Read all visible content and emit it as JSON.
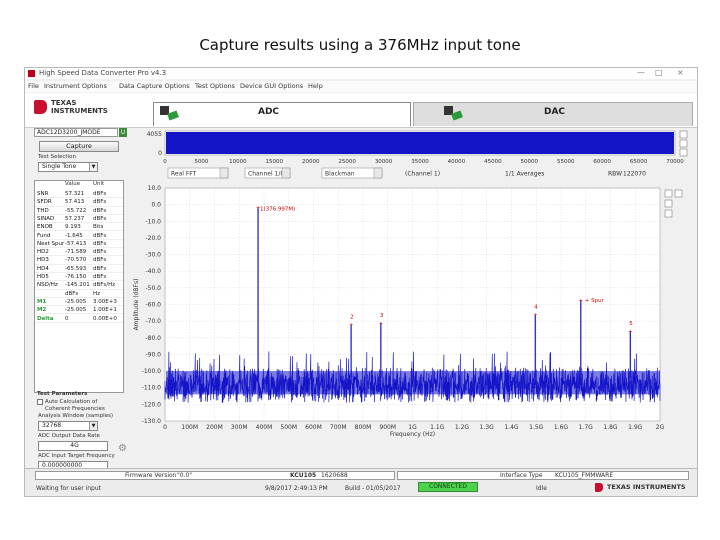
{
  "caption": "Capture results using a 376MHz input tone",
  "window": {
    "title": "High Speed Data Converter Pro v4.3",
    "controls": [
      "—",
      "□",
      "×"
    ]
  },
  "menu": [
    "File",
    "Instrument Options",
    "Data Capture Options",
    "Test Options",
    "Device GUI Options",
    "Help"
  ],
  "brand": {
    "line1": "TEXAS",
    "line2": "INSTRUMENTS"
  },
  "tabs": [
    {
      "label": "ADC"
    },
    {
      "label": "DAC"
    }
  ],
  "left_panel": {
    "device": "ADC12D3200_JMODE",
    "device_btn": "U",
    "capture_label": "Capture",
    "test_selection_label": "Test Selection",
    "test_selection_value": "Single Tone",
    "table": {
      "headers": [
        "Value",
        "Unit"
      ],
      "rows": [
        {
          "name": "SNR",
          "value": "57.321",
          "unit": "dBFs"
        },
        {
          "name": "SFDR",
          "value": "57.413",
          "unit": "dBFs"
        },
        {
          "name": "THD",
          "value": "-55.722",
          "unit": "dBFs"
        },
        {
          "name": "SINAD",
          "value": "57.237",
          "unit": "dBFs"
        },
        {
          "name": "ENOB",
          "value": "9.193",
          "unit": "Bits"
        },
        {
          "name": "Fund",
          "value": "-1.645",
          "unit": "dBFs"
        },
        {
          "name": "Next Spur",
          "value": "-57.413",
          "unit": "dBFs"
        },
        {
          "name": "HD2",
          "value": "-71.589",
          "unit": "dBFs"
        },
        {
          "name": "HD3",
          "value": "-70.570",
          "unit": "dBFs"
        },
        {
          "name": "HD4",
          "value": "-65.593",
          "unit": "dBFs"
        },
        {
          "name": "HD5",
          "value": "-76.150",
          "unit": "dBFs"
        },
        {
          "name": "NSD/Hz",
          "value": "-145.201",
          "unit": "dBFs/Hz"
        },
        {
          "name": "",
          "value": "dBFs",
          "unit": "Hz"
        },
        {
          "name": "M1",
          "value": "-25.005",
          "unit": "3.00E+3"
        },
        {
          "name": "M2",
          "value": "-25.005",
          "unit": "1.00E+1"
        },
        {
          "name": "Delta",
          "value": "0",
          "unit": "0.00E+0"
        }
      ]
    },
    "test_params_label": "Test Parameters",
    "auto_calc_label": "Auto Calculation of",
    "coherent_label": "Coherent Frequencies",
    "analysis_window_label": "Analysis Window (samples)",
    "analysis_window_value": "32768",
    "adc_rate_label": "ADC Output Data Rate",
    "adc_rate_value": "4G",
    "adc_input_freq_label": "ADC Input Target Frequency",
    "adc_input_freq_value": "0.000000000"
  },
  "plot_controls": {
    "fft_type": "Real FFT",
    "channel": "Channel 1/0",
    "window_fn": "Blackman",
    "channel_label": "(Channel 1)",
    "averages": "1/1 Averages",
    "rbw_label": "RBW",
    "rbw_value": "122070"
  },
  "statusbar": {
    "firmware_label": "Firmware Version",
    "firmware_value": "\"0.0\"",
    "board_label": "KCU105",
    "board_value": "1620688",
    "interface_label": "Interface Type",
    "interface_value": "KCU105_FMMWARE",
    "status_message": "Waiting for user input",
    "datetime": "9/8/2017 2:49:13 PM",
    "build": "Build - 01/05/2017",
    "connection": "CONNECTED",
    "idle": "Idle"
  },
  "chart_data": [
    {
      "type": "line",
      "title": "",
      "xlabel": "",
      "ylabel": "",
      "xticks": [
        "0",
        "5000",
        "10000",
        "15000",
        "20000",
        "25000",
        "30000",
        "35000",
        "40000",
        "45000",
        "50000",
        "55000",
        "60000",
        "65000",
        "70000"
      ],
      "yticks": [
        "4055",
        "0"
      ],
      "xlim": [
        0,
        70000
      ],
      "ylim": [
        0,
        4095
      ],
      "note_type": "time-domain-codes",
      "color": "#1414c8"
    },
    {
      "type": "line",
      "title": "",
      "xlabel": "Frequency (Hz)",
      "ylabel": "Amplitude (dBFs)",
      "xticks": [
        "0",
        "100M",
        "200M",
        "300M",
        "400M",
        "500M",
        "600M",
        "700M",
        "800M",
        "900M",
        "1G",
        "1.1G",
        "1.2G",
        "1.3G",
        "1.4G",
        "1.5G",
        "1.6G",
        "1.7G",
        "1.8G",
        "1.9G",
        "2G"
      ],
      "yticks": [
        "10.0",
        "0.0",
        "-10.0",
        "-20.0",
        "-30.0",
        "-40.0",
        "-50.0",
        "-60.0",
        "-70.0",
        "-80.0",
        "-90.0",
        "-100.0",
        "-110.0",
        "-120.0",
        "-130.0"
      ],
      "xlim": [
        0,
        2000
      ],
      "xunit": "MHz",
      "ylim": [
        -130,
        10
      ],
      "noise_floor": [
        -114,
        -98
      ],
      "peaks": [
        {
          "x": 376,
          "y": -1.6,
          "label": "1(376.997M)"
        },
        {
          "x": 752,
          "y": -72,
          "label": "2"
        },
        {
          "x": 872,
          "y": -71,
          "label": "3"
        },
        {
          "x": 1496,
          "y": -66,
          "label": "4"
        },
        {
          "x": 1880,
          "y": -76,
          "label": "5"
        },
        {
          "x": 1680,
          "y": -57.4,
          "label": "+ Spur"
        }
      ],
      "color": "#1414c8"
    }
  ]
}
